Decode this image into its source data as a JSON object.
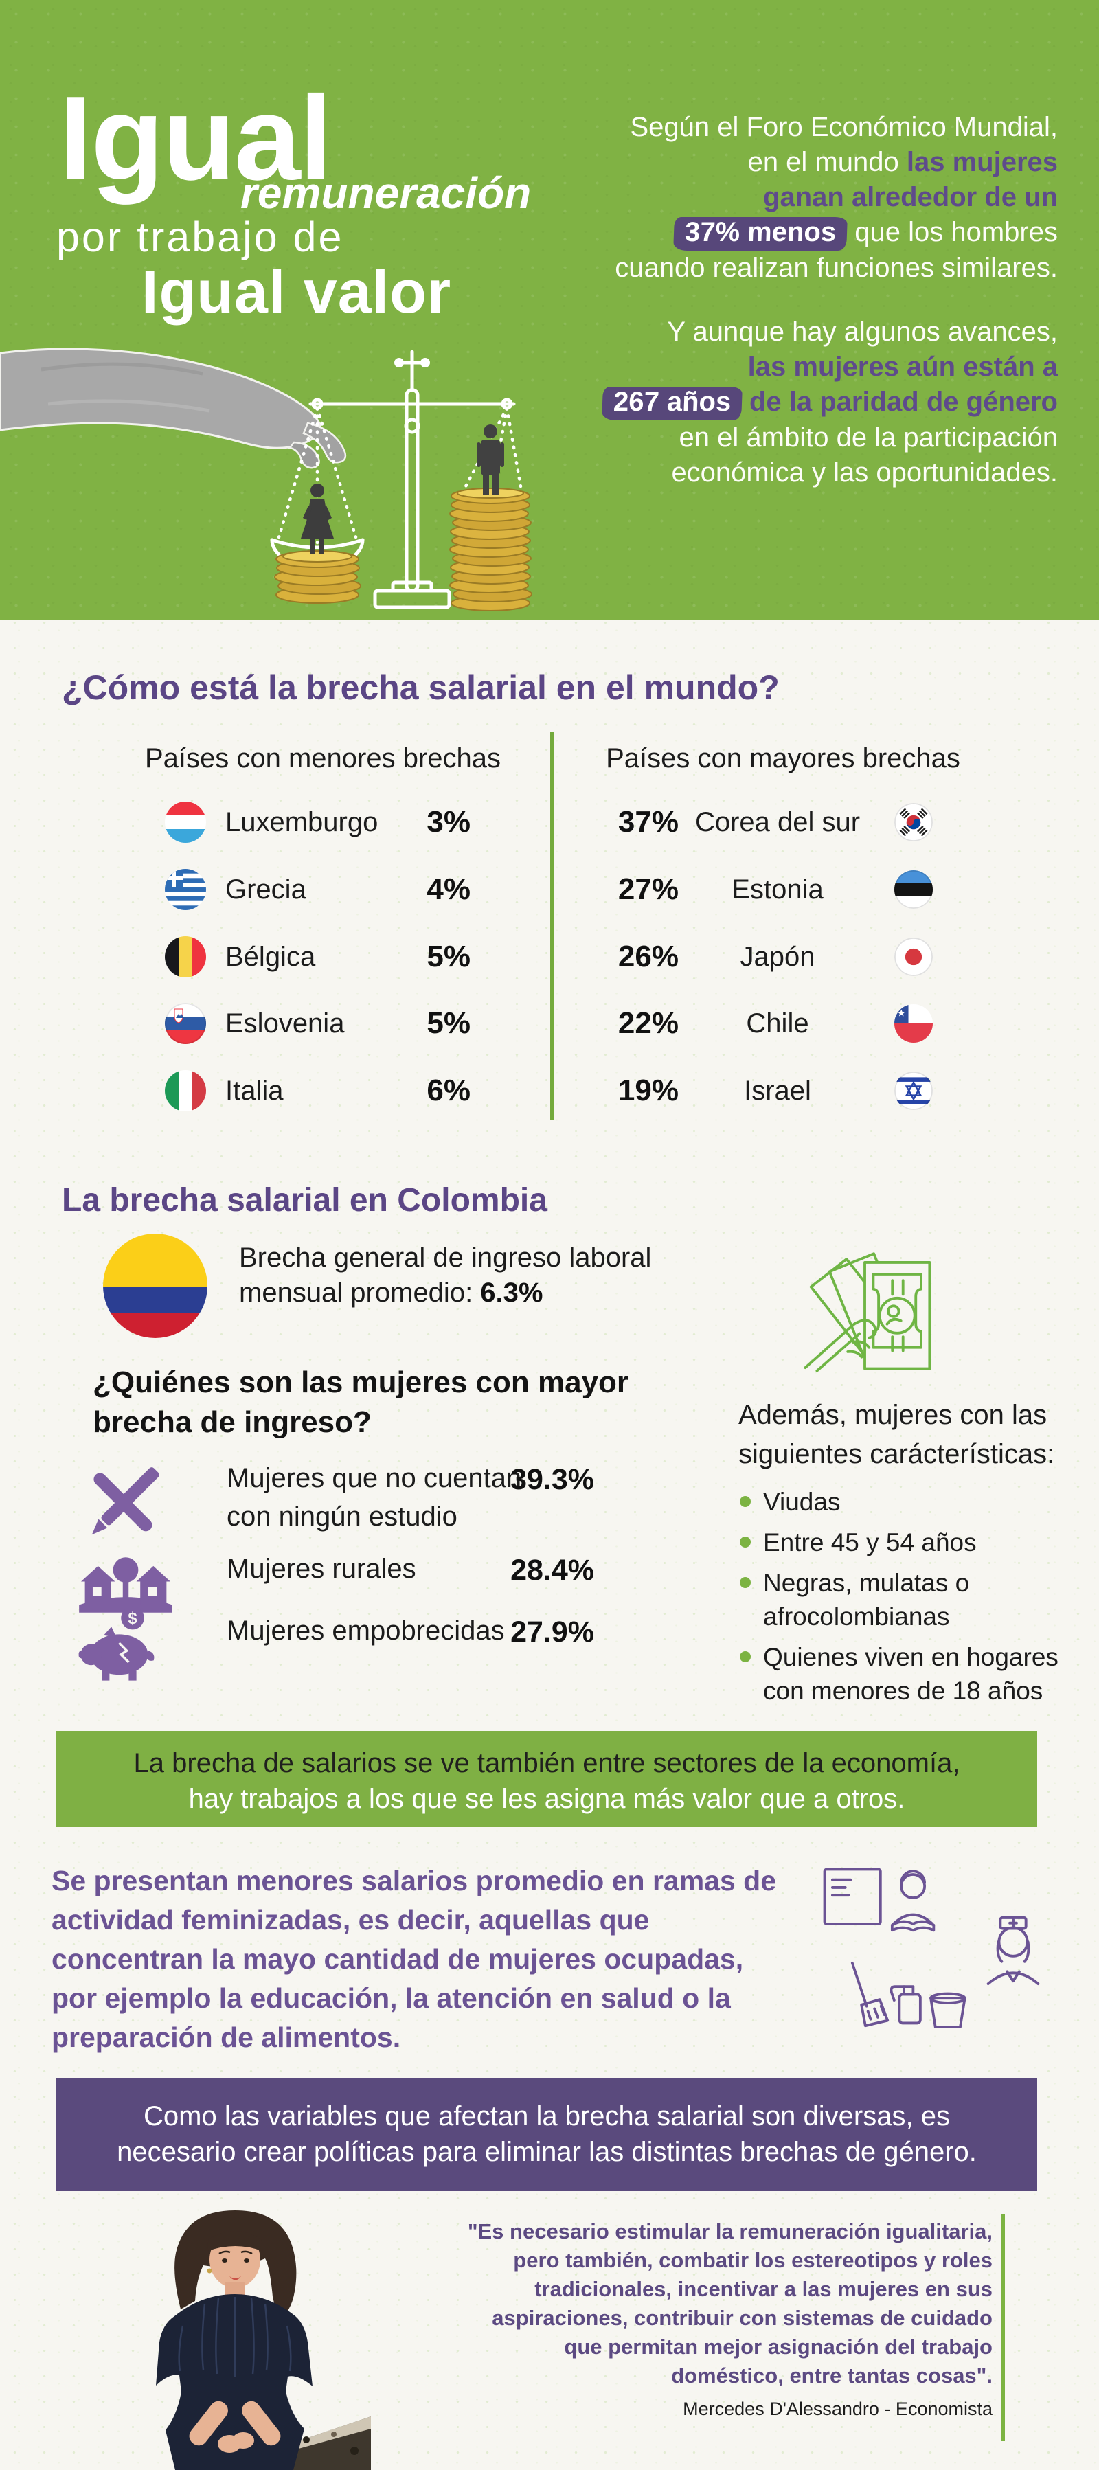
{
  "palette": {
    "green": "#80b244",
    "green_line": "#7cb342",
    "purple": "#5b4685",
    "purple_banner": "#5a4a7d",
    "purple_text": "#6b5394",
    "highlight_bg": "#57477a",
    "body_bg": "#f7f6f1",
    "text_dark": "#1c1c1c"
  },
  "header": {
    "title": {
      "line1": "Igual",
      "line2": "remuneración",
      "line3": "por trabajo de",
      "line4": "Igual valor"
    },
    "copy1": [
      [
        {
          "t": "Según el Foro Económico Mundial,",
          "s": "w"
        }
      ],
      [
        {
          "t": "en el mundo ",
          "s": "w"
        },
        {
          "t": "las mujeres",
          "s": "p"
        }
      ],
      [
        {
          "t": "ganan alrededor de un",
          "s": "p"
        }
      ],
      [
        {
          "t": "37% menos",
          "s": "h"
        },
        {
          "t": " que los hombres",
          "s": "w"
        }
      ],
      [
        {
          "t": "cuando realizan funciones similares.",
          "s": "w"
        }
      ]
    ],
    "copy2": [
      [
        {
          "t": "Y aunque hay algunos avances,",
          "s": "w"
        }
      ],
      [
        {
          "t": "las mujeres aún están a",
          "s": "p"
        }
      ],
      [
        {
          "t": "267 años",
          "s": "h"
        },
        {
          "t": " de la paridad de género",
          "s": "p"
        }
      ],
      [
        {
          "t": "en el ámbito de la participación",
          "s": "w"
        }
      ],
      [
        {
          "t": "económica y las oportunidades.",
          "s": "w"
        }
      ]
    ]
  },
  "world": {
    "heading": "¿Cómo está la brecha salarial en el mundo?",
    "lower": {
      "title": "Países con menores brechas",
      "rows": [
        {
          "country": "Luxemburgo",
          "value": "3%",
          "flag": "luxembourg"
        },
        {
          "country": "Grecia",
          "value": "4%",
          "flag": "greece"
        },
        {
          "country": "Bélgica",
          "value": "5%",
          "flag": "belgium"
        },
        {
          "country": "Eslovenia",
          "value": "5%",
          "flag": "slovenia"
        },
        {
          "country": "Italia",
          "value": "6%",
          "flag": "italy"
        }
      ]
    },
    "higher": {
      "title": "Países con mayores brechas",
      "rows": [
        {
          "country": "Corea del sur",
          "value": "37%",
          "flag": "south-korea"
        },
        {
          "country": "Estonia",
          "value": "27%",
          "flag": "estonia"
        },
        {
          "country": "Japón",
          "value": "26%",
          "flag": "japan"
        },
        {
          "country": "Chile",
          "value": "22%",
          "flag": "chile"
        },
        {
          "country": "Israel",
          "value": "19%",
          "flag": "israel"
        }
      ]
    }
  },
  "colombia": {
    "heading": "La brecha salarial en Colombia",
    "general": [
      [
        {
          "t": "Brecha general de ingreso laboral",
          "s": "r"
        }
      ],
      [
        {
          "t": "mensual promedio:  ",
          "s": "r"
        },
        {
          "t": "6.3%",
          "s": "b"
        }
      ]
    ],
    "question_line1": "¿Quiénes son las mujeres con mayor",
    "question_line2": "brecha de ingreso?",
    "rows": [
      {
        "label_line1": "Mujeres que no cuentan",
        "label_line2": "con ningún estudio",
        "value": "39.3%",
        "icon": "crossed-pencils-icon"
      },
      {
        "label_line1": "Mujeres rurales",
        "label_line2": "",
        "value": "28.4%",
        "icon": "rural-house-icon"
      },
      {
        "label_line1": "Mujeres empobrecidas",
        "label_line2": "",
        "value": "27.9%",
        "icon": "piggy-bank-icon"
      }
    ],
    "additional": {
      "icon": "money-in-hand-icon",
      "line1": "Además, mujeres con las",
      "line2": "siguientes carácterísticas:",
      "items": [
        "Viudas",
        "Entre 45 y 54 años",
        "Negras, mulatas o afrocolombianas",
        "Quienes viven en hogares con menores de 18 años"
      ]
    }
  },
  "sector_banner": {
    "line1": "La brecha de salarios se ve también entre sectores de la economía,",
    "line2": "hay trabajos a los que se les asigna más valor que a otros."
  },
  "feminized": {
    "lines": [
      "Se presentan menores salarios promedio en ramas de",
      "actividad feminizadas, es decir, aquellas que",
      "concentran la mayo cantidad de mujeres ocupadas,",
      "por ejemplo la educación, la atención en salud o la",
      "preparación de alimentos."
    ],
    "icons": [
      "teacher-icon",
      "nurse-icon",
      "cleaning-supplies-icon"
    ]
  },
  "policy_banner": {
    "line1": "Como las variables que afectan la brecha salarial son diversas, es",
    "line2": "necesario crear políticas para eliminar las distintas brechas de género."
  },
  "quote": {
    "lines": [
      "\"Es necesario estimular la remuneración igualitaria,",
      "pero también, combatir los estereotipos y roles",
      "tradicionales, incentivar a las mujeres en sus",
      "aspiraciones, contribuir con sistemas de cuidado",
      "que permitan mejor asignación del trabajo",
      "doméstico, entre tantas cosas\"."
    ],
    "attribution": "Mercedes D'Alessandro - Economista"
  },
  "chart_data": [
    {
      "type": "table",
      "title": "Países con menores brechas",
      "categories": [
        "Luxemburgo",
        "Grecia",
        "Bélgica",
        "Eslovenia",
        "Italia"
      ],
      "values": [
        3,
        4,
        5,
        5,
        6
      ],
      "unit": "%"
    },
    {
      "type": "table",
      "title": "Países con mayores brechas",
      "categories": [
        "Corea del sur",
        "Estonia",
        "Japón",
        "Chile",
        "Israel"
      ],
      "values": [
        37,
        27,
        26,
        22,
        19
      ],
      "unit": "%"
    },
    {
      "type": "table",
      "title": "¿Quiénes son las mujeres con mayor brecha de ingreso? (Colombia)",
      "categories": [
        "Mujeres que no cuentan con ningún estudio",
        "Mujeres rurales",
        "Mujeres empobrecidas"
      ],
      "values": [
        39.3,
        28.4,
        27.9
      ],
      "unit": "%",
      "note": "Brecha general de ingreso laboral mensual promedio: 6.3%"
    }
  ]
}
